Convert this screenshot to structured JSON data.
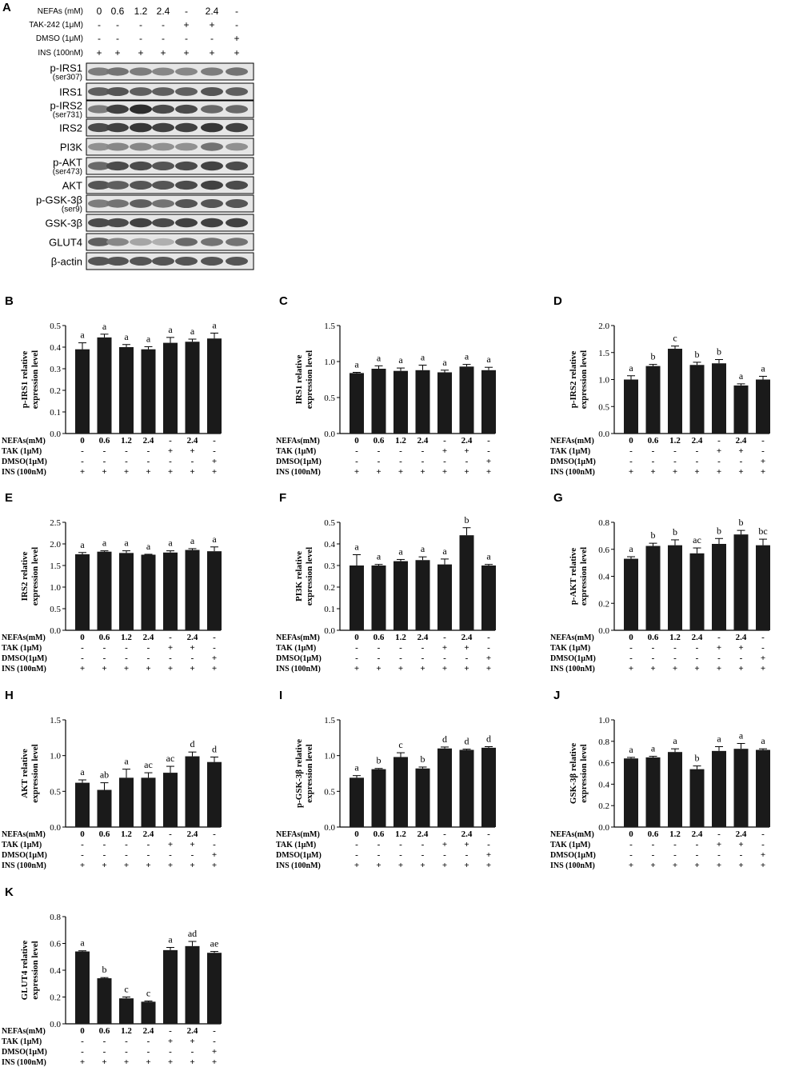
{
  "blot": {
    "label": "A",
    "conditions": [
      {
        "label": "NEFAs (mM)",
        "values": [
          "0",
          "0.6",
          "1.2",
          "2.4",
          "-",
          "2.4",
          "-"
        ]
      },
      {
        "label": "TAK-242 (1μM)",
        "values": [
          "-",
          "-",
          "-",
          "-",
          "+",
          "+",
          "-"
        ]
      },
      {
        "label": "DMSO (1μM)",
        "values": [
          "-",
          "-",
          "-",
          "-",
          "-",
          "-",
          "+"
        ]
      },
      {
        "label": "INS (100nM)",
        "values": [
          "+",
          "+",
          "+",
          "+",
          "+",
          "+",
          "+"
        ]
      }
    ],
    "bands": [
      {
        "label": "p-IRS1",
        "sub": "(ser307)",
        "intensity": [
          0.55,
          0.6,
          0.55,
          0.5,
          0.5,
          0.55,
          0.6
        ]
      },
      {
        "label": "IRS1",
        "sub": "",
        "intensity": [
          0.7,
          0.75,
          0.7,
          0.7,
          0.7,
          0.75,
          0.7
        ]
      },
      {
        "label": "p-IRS2",
        "sub": "(ser731)",
        "intensity": [
          0.55,
          0.85,
          0.95,
          0.8,
          0.8,
          0.65,
          0.65
        ]
      },
      {
        "label": "IRS2",
        "sub": "",
        "intensity": [
          0.8,
          0.85,
          0.9,
          0.85,
          0.85,
          0.9,
          0.85
        ]
      },
      {
        "label": "PI3K",
        "sub": "",
        "intensity": [
          0.45,
          0.5,
          0.5,
          0.45,
          0.45,
          0.6,
          0.45
        ]
      },
      {
        "label": "p-AKT",
        "sub": "(ser473)",
        "intensity": [
          0.65,
          0.8,
          0.8,
          0.75,
          0.8,
          0.85,
          0.8
        ]
      },
      {
        "label": "AKT",
        "sub": "",
        "intensity": [
          0.75,
          0.7,
          0.75,
          0.75,
          0.8,
          0.85,
          0.8
        ]
      },
      {
        "label": "p-GSK-3β",
        "sub": "(ser9)",
        "intensity": [
          0.55,
          0.6,
          0.7,
          0.6,
          0.75,
          0.75,
          0.75
        ]
      },
      {
        "label": "GSK-3β",
        "sub": "",
        "intensity": [
          0.8,
          0.8,
          0.85,
          0.8,
          0.85,
          0.85,
          0.85
        ]
      },
      {
        "label": "GLUT4",
        "sub": "",
        "intensity": [
          0.7,
          0.5,
          0.35,
          0.3,
          0.65,
          0.6,
          0.6
        ]
      },
      {
        "label": "β-actin",
        "sub": "",
        "intensity": [
          0.75,
          0.75,
          0.75,
          0.75,
          0.75,
          0.75,
          0.75
        ]
      }
    ]
  },
  "treatment_rows": [
    {
      "label": "NEFAs(mM)",
      "values": [
        "0",
        "0.6",
        "1.2",
        "2.4",
        "-",
        "2.4",
        "-"
      ]
    },
    {
      "label": "TAK (1μM)",
      "values": [
        "-",
        "-",
        "-",
        "-",
        "+",
        "+",
        "-"
      ]
    },
    {
      "label": "DMSO(1μM)",
      "values": [
        "-",
        "-",
        "-",
        "-",
        "-",
        "-",
        "+"
      ]
    },
    {
      "label": "INS (100nM)",
      "values": [
        "+",
        "+",
        "+",
        "+",
        "+",
        "+",
        "+"
      ]
    }
  ],
  "colors": {
    "bar": "#1a1a1a",
    "axis": "#000000"
  },
  "chart_data": [
    {
      "panel": "B",
      "type": "bar",
      "ylabel": [
        "p-IRS1 relative",
        "expression level"
      ],
      "ylim": [
        0,
        0.5
      ],
      "yticks": [
        "0.0",
        "0.1",
        "0.2",
        "0.3",
        "0.4",
        "0.5"
      ],
      "values": [
        0.39,
        0.445,
        0.4,
        0.39,
        0.42,
        0.425,
        0.44
      ],
      "errors": [
        0.03,
        0.015,
        0.012,
        0.012,
        0.025,
        0.012,
        0.025
      ],
      "letters": [
        "a",
        "a",
        "a",
        "a",
        "a",
        "a",
        "a"
      ]
    },
    {
      "panel": "C",
      "type": "bar",
      "ylabel": [
        "IRS1 relative",
        "expression level"
      ],
      "ylim": [
        0,
        1.5
      ],
      "yticks": [
        "0.0",
        "0.5",
        "1.0",
        "1.5"
      ],
      "values": [
        0.84,
        0.9,
        0.87,
        0.88,
        0.85,
        0.93,
        0.88
      ],
      "errors": [
        0.01,
        0.04,
        0.04,
        0.07,
        0.03,
        0.03,
        0.04
      ],
      "letters": [
        "a",
        "a",
        "a",
        "a",
        "a",
        "a",
        "a"
      ]
    },
    {
      "panel": "D",
      "type": "bar",
      "ylabel": [
        "p-IRS2 relative",
        "expression level"
      ],
      "ylim": [
        0,
        2.0
      ],
      "yticks": [
        "0.0",
        "0.5",
        "1.0",
        "1.5",
        "2.0"
      ],
      "values": [
        1.0,
        1.25,
        1.57,
        1.27,
        1.3,
        0.89,
        1.0
      ],
      "errors": [
        0.07,
        0.03,
        0.05,
        0.05,
        0.07,
        0.03,
        0.06
      ],
      "letters": [
        "a",
        "b",
        "c",
        "b",
        "b",
        "a",
        "a"
      ]
    },
    {
      "panel": "E",
      "type": "bar",
      "ylabel": [
        "IRS2 relative",
        "expression level"
      ],
      "ylim": [
        0,
        2.5
      ],
      "yticks": [
        "0.0",
        "0.5",
        "1.0",
        "1.5",
        "2.0",
        "2.5"
      ],
      "values": [
        1.76,
        1.82,
        1.79,
        1.75,
        1.8,
        1.86,
        1.83
      ],
      "errors": [
        0.04,
        0.02,
        0.05,
        0.01,
        0.04,
        0.03,
        0.1
      ],
      "letters": [
        "a",
        "a",
        "a",
        "a",
        "a",
        "a",
        "a"
      ]
    },
    {
      "panel": "F",
      "type": "bar",
      "ylabel": [
        "PI3K relative",
        "expression level"
      ],
      "ylim": [
        0,
        0.5
      ],
      "yticks": [
        "0.0",
        "0.1",
        "0.2",
        "0.3",
        "0.4",
        "0.5"
      ],
      "values": [
        0.3,
        0.3,
        0.32,
        0.325,
        0.305,
        0.44,
        0.3
      ],
      "errors": [
        0.05,
        0.005,
        0.008,
        0.015,
        0.025,
        0.035,
        0.005
      ],
      "letters": [
        "a",
        "a",
        "a",
        "a",
        "a",
        "b",
        "a"
      ]
    },
    {
      "panel": "G",
      "type": "bar",
      "ylabel": [
        "p-AKT relative",
        "expression level"
      ],
      "ylim": [
        0,
        0.8
      ],
      "yticks": [
        "0.0",
        "0.2",
        "0.4",
        "0.6",
        "0.8"
      ],
      "values": [
        0.53,
        0.625,
        0.63,
        0.57,
        0.64,
        0.71,
        0.63
      ],
      "errors": [
        0.015,
        0.02,
        0.04,
        0.04,
        0.04,
        0.03,
        0.045
      ],
      "letters": [
        "a",
        "b",
        "b",
        "ac",
        "b",
        "b",
        "bc"
      ]
    },
    {
      "panel": "H",
      "type": "bar",
      "ylabel": [
        "AKT relative",
        "expression level"
      ],
      "ylim": [
        0,
        1.5
      ],
      "yticks": [
        "0.0",
        "0.5",
        "1.0",
        "1.5"
      ],
      "values": [
        0.62,
        0.52,
        0.69,
        0.69,
        0.76,
        0.99,
        0.91
      ],
      "errors": [
        0.04,
        0.1,
        0.12,
        0.07,
        0.09,
        0.06,
        0.07
      ],
      "letters": [
        "a",
        "ab",
        "a",
        "ac",
        "ac",
        "d",
        "d"
      ]
    },
    {
      "panel": "I",
      "type": "bar",
      "ylabel": [
        "p-GSK-3β relative",
        "expression level"
      ],
      "ylim": [
        0,
        1.5
      ],
      "yticks": [
        "0.0",
        "0.5",
        "1.0",
        "1.5"
      ],
      "values": [
        0.69,
        0.81,
        0.98,
        0.82,
        1.1,
        1.08,
        1.11
      ],
      "errors": [
        0.03,
        0.01,
        0.06,
        0.02,
        0.02,
        0.01,
        0.015
      ],
      "letters": [
        "a",
        "b",
        "c",
        "b",
        "d",
        "d",
        "d"
      ]
    },
    {
      "panel": "J",
      "type": "bar",
      "ylabel": [
        "GSK-3β relative",
        "expression level"
      ],
      "ylim": [
        0,
        1.0
      ],
      "yticks": [
        "0.0",
        "0.2",
        "0.4",
        "0.6",
        "0.8",
        "1.0"
      ],
      "values": [
        0.64,
        0.65,
        0.7,
        0.54,
        0.71,
        0.73,
        0.72
      ],
      "errors": [
        0.01,
        0.01,
        0.03,
        0.03,
        0.04,
        0.05,
        0.01
      ],
      "letters": [
        "a",
        "a",
        "a",
        "b",
        "a",
        "a",
        "a"
      ]
    },
    {
      "panel": "K",
      "type": "bar",
      "ylabel": [
        "GLUT4 relative",
        "expression level"
      ],
      "ylim": [
        0,
        0.8
      ],
      "yticks": [
        "0.0",
        "0.2",
        "0.4",
        "0.6",
        "0.8"
      ],
      "values": [
        0.54,
        0.34,
        0.19,
        0.165,
        0.55,
        0.58,
        0.53
      ],
      "errors": [
        0.005,
        0.005,
        0.01,
        0.005,
        0.02,
        0.035,
        0.01
      ],
      "letters": [
        "a",
        "b",
        "c",
        "c",
        "a",
        "ad",
        "ae"
      ]
    }
  ]
}
